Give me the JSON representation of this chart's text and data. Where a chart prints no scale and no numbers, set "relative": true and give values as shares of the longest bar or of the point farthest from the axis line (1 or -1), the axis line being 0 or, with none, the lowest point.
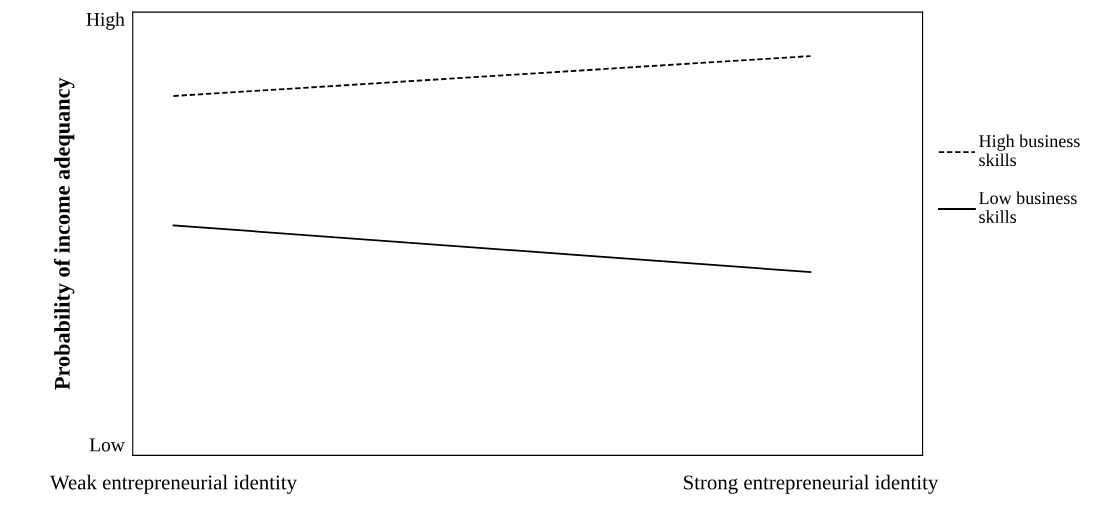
{
  "chart_data": {
    "type": "line",
    "relative": true,
    "ylabel": "Probability of income adequancy",
    "categories": [
      "Weak entrepreneurial identity",
      "Strong entrepreneurial identity"
    ],
    "series": [
      {
        "name": "High business\nskills",
        "color": "#000000",
        "line_style": "dashed",
        "values": [
          0.9,
          1
        ]
      },
      {
        "name": "Low business\nskills",
        "color": "#000000",
        "line_style": "solid",
        "values": [
          0.576,
          0.459
        ]
      }
    ],
    "annotations": [
      "High",
      "Low"
    ],
    "legend": "right",
    "grid": false,
    "marker": "none"
  }
}
